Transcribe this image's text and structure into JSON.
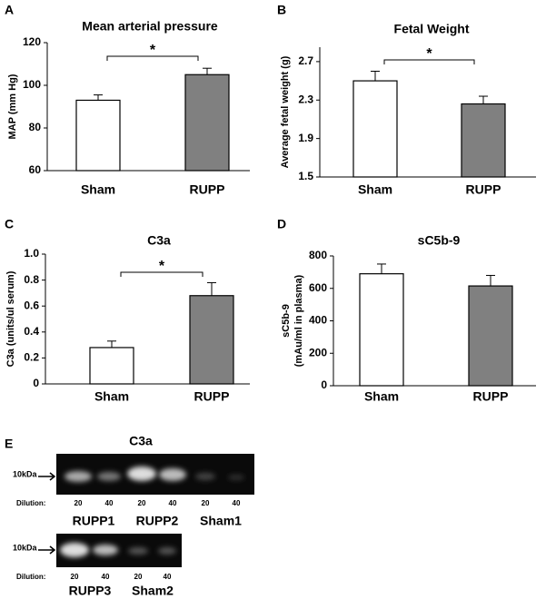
{
  "chart_data": [
    {
      "type": "bar",
      "panel": "A",
      "title": "Mean arterial pressure",
      "ylabel": [
        "MAP (mm Hg)"
      ],
      "categories": [
        "Sham",
        "RUPP"
      ],
      "values": [
        93,
        105
      ],
      "errors": [
        2.5,
        3
      ],
      "colors": [
        "#ffffff",
        "#808080"
      ],
      "ylim": [
        60,
        120
      ],
      "yticks": [
        60,
        80,
        100,
        120
      ],
      "annotation": "*"
    },
    {
      "type": "bar",
      "panel": "B",
      "title": "Fetal Weight",
      "ylabel": [
        "Average fetal weight (g)"
      ],
      "categories": [
        "Sham",
        "RUPP"
      ],
      "values": [
        2.5,
        2.26
      ],
      "errors": [
        0.1,
        0.08
      ],
      "colors": [
        "#ffffff",
        "#808080"
      ],
      "ylim": [
        1.5,
        2.85
      ],
      "yticks": [
        1.5,
        1.9,
        2.3,
        2.7
      ],
      "annotation": "*"
    },
    {
      "type": "bar",
      "panel": "C",
      "title": "C3a",
      "ylabel": [
        "C3a (units/ul serum)"
      ],
      "categories": [
        "Sham",
        "RUPP"
      ],
      "values": [
        0.28,
        0.68
      ],
      "errors": [
        0.05,
        0.1
      ],
      "colors": [
        "#ffffff",
        "#808080"
      ],
      "ylim": [
        0,
        1
      ],
      "yticks": [
        0,
        0.2,
        0.4,
        0.6,
        0.8,
        {
          "value": 1,
          "label": "1.0"
        }
      ],
      "annotation": "*"
    },
    {
      "type": "bar",
      "panel": "D",
      "title": "sC5b-9",
      "ylabel": [
        "sC5b-9",
        "(mAu/ml in plasma)"
      ],
      "categories": [
        "Sham",
        "RUPP"
      ],
      "values": [
        690,
        615
      ],
      "errors": [
        60,
        65
      ],
      "colors": [
        "#ffffff",
        "#808080"
      ],
      "ylim": [
        0,
        800
      ],
      "yticks": [
        0,
        200,
        400,
        600,
        800
      ]
    }
  ],
  "blot": {
    "panel": "E",
    "title": "C3a",
    "strips": [
      {
        "marker": "10kDa",
        "dilution_label": "Dilution:",
        "dilutions": [
          "20",
          "40",
          "20",
          "40",
          "20",
          "40"
        ],
        "groups": [
          "RUPP1",
          "RUPP2",
          "Sham1"
        ]
      },
      {
        "marker": "10kDa",
        "dilution_label": "Dilution:",
        "dilutions": [
          "20",
          "40",
          "20",
          "40"
        ],
        "groups": [
          "RUPP3",
          "Sham2"
        ]
      }
    ]
  }
}
